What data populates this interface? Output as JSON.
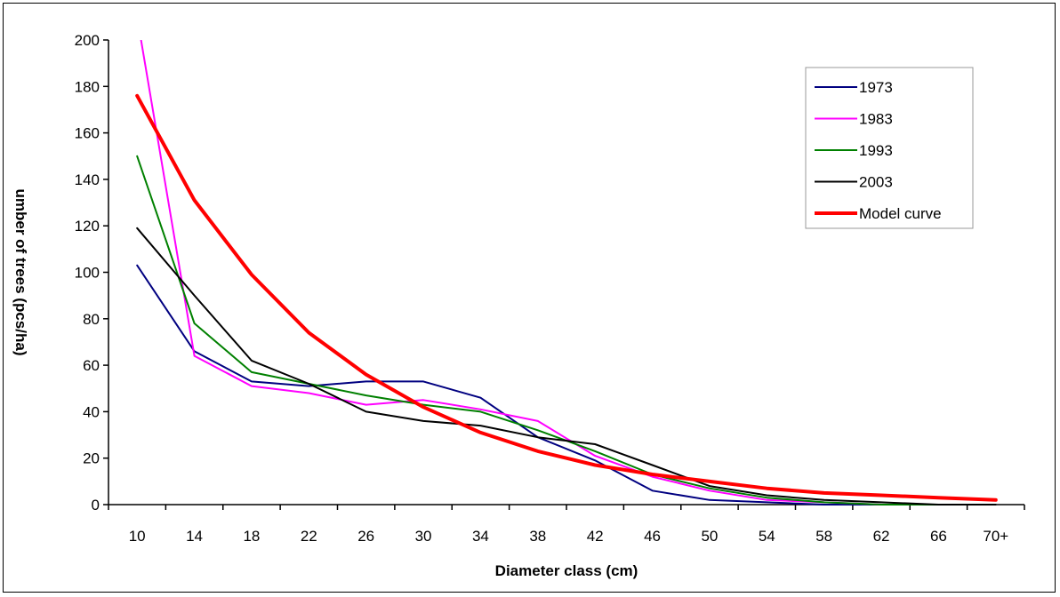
{
  "chart_data": {
    "type": "line",
    "title": "",
    "xlabel": "Diameter class (cm)",
    "ylabel": "umber of trees (pcs/ha)",
    "categories": [
      "10",
      "14",
      "18",
      "22",
      "26",
      "30",
      "34",
      "38",
      "42",
      "46",
      "50",
      "54",
      "58",
      "62",
      "66",
      "70+"
    ],
    "ylim": [
      0,
      200
    ],
    "yticks": [
      0,
      20,
      40,
      60,
      80,
      100,
      120,
      140,
      160,
      180,
      200
    ],
    "grid": false,
    "legend_position": "top-right",
    "series": [
      {
        "name": "1973",
        "color": "#000080",
        "width": 2,
        "values": [
          103,
          66,
          53,
          51,
          53,
          53,
          46,
          29,
          19,
          6,
          2,
          1,
          0,
          0,
          0,
          0
        ]
      },
      {
        "name": "1983",
        "color": "#ff00ff",
        "width": 2,
        "values": [
          210,
          64,
          51,
          48,
          43,
          45,
          41,
          36,
          21,
          12,
          6,
          2,
          1,
          0,
          0,
          0
        ]
      },
      {
        "name": "1993",
        "color": "#008000",
        "width": 2,
        "values": [
          150,
          78,
          57,
          52,
          47,
          43,
          40,
          32,
          23,
          13,
          7,
          3,
          1,
          0,
          0,
          0
        ]
      },
      {
        "name": "2003",
        "color": "#000000",
        "width": 2,
        "values": [
          119,
          90,
          62,
          52,
          40,
          36,
          34,
          29,
          26,
          17,
          8,
          4,
          2,
          1,
          0,
          0
        ]
      },
      {
        "name": "Model curve",
        "color": "#ff0000",
        "width": 4,
        "values": [
          176,
          131,
          99,
          74,
          56,
          42,
          31,
          23,
          17,
          13,
          10,
          7,
          5,
          4,
          3,
          2
        ]
      }
    ]
  }
}
